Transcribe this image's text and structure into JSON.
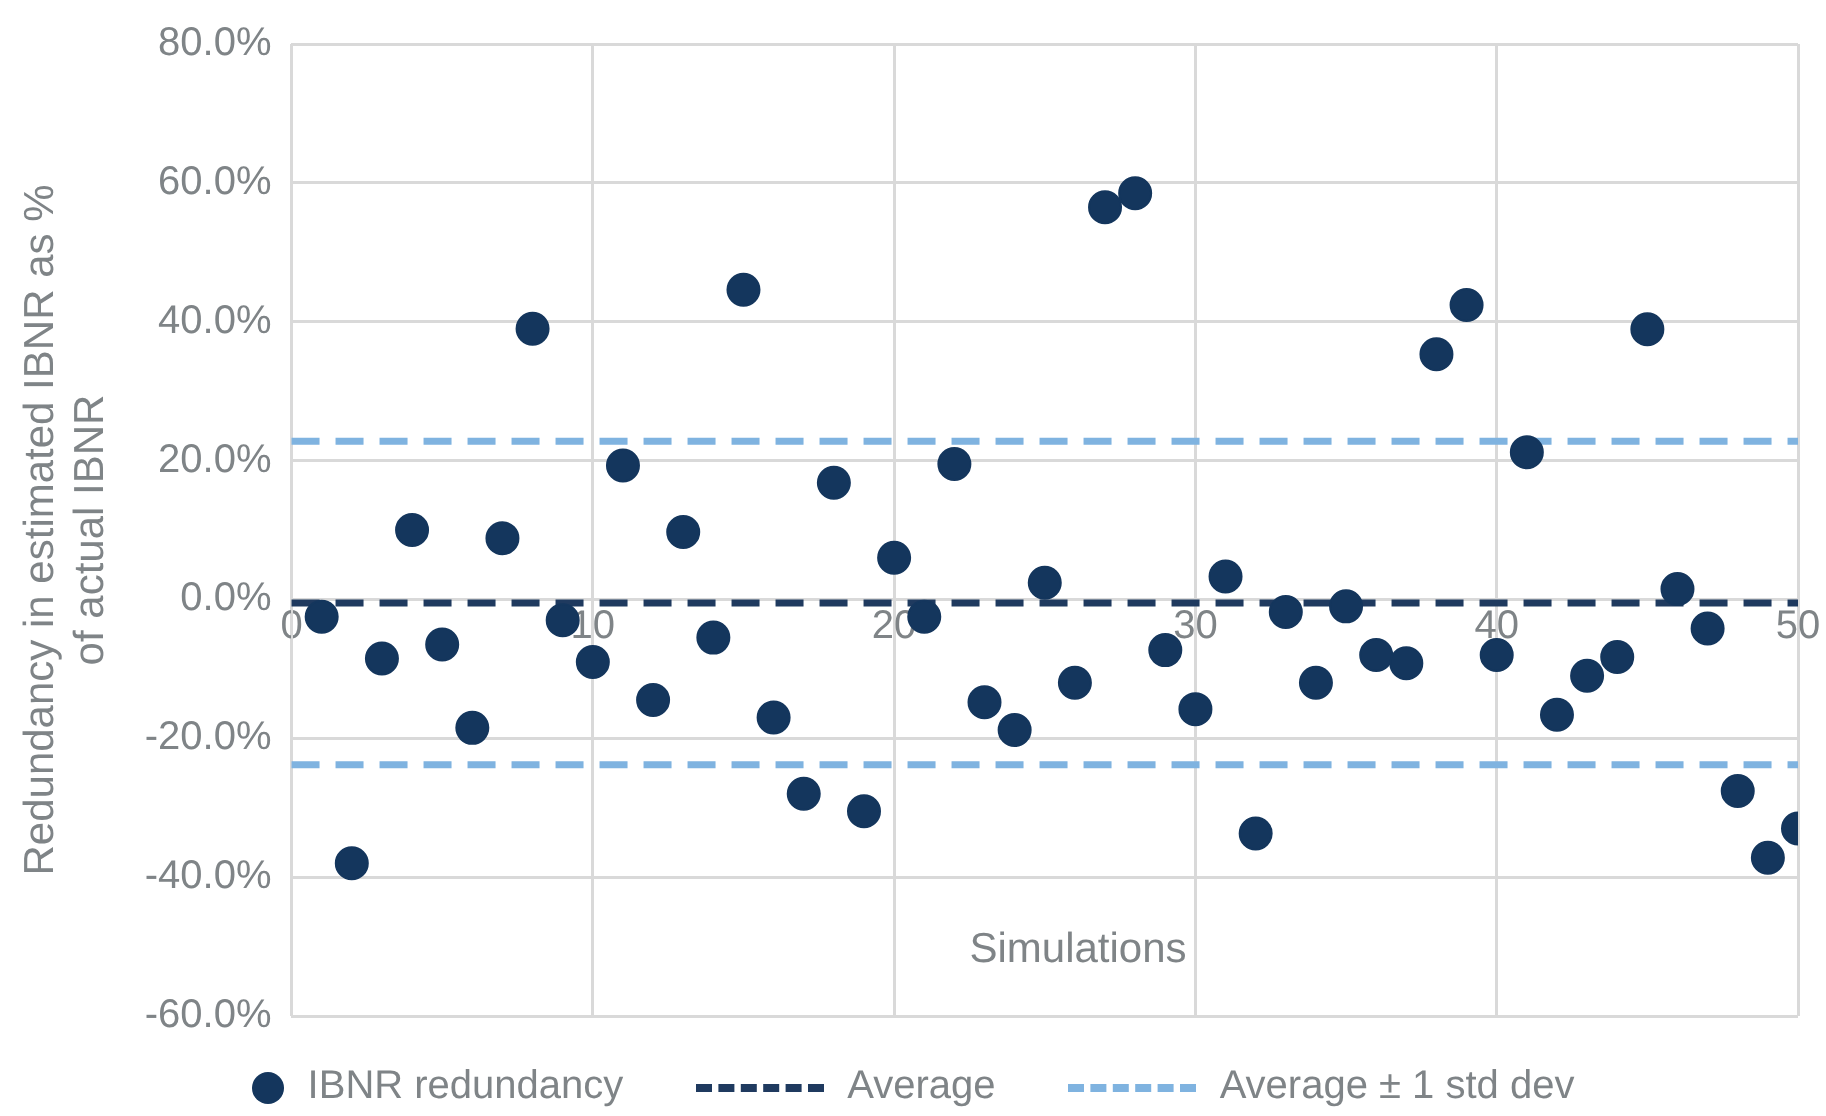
{
  "chart_data": {
    "type": "scatter",
    "xlabel": "Simulations",
    "ylabel": "Redundancy in estimated IBNR as % of actual IBNR",
    "x": [
      1,
      2,
      3,
      4,
      5,
      6,
      7,
      8,
      9,
      10,
      11,
      12,
      13,
      14,
      15,
      16,
      17,
      18,
      19,
      20,
      21,
      22,
      23,
      24,
      25,
      26,
      27,
      28,
      29,
      30,
      31,
      32,
      33,
      34,
      35,
      36,
      37,
      38,
      39,
      40,
      41,
      42,
      43,
      44,
      45,
      46,
      47,
      48,
      49,
      50
    ],
    "series": [
      {
        "name": "IBNR redundancy",
        "color": "#14365d",
        "values": [
          -2.5,
          -38,
          -8.5,
          10,
          -6.5,
          -18.5,
          8.8,
          39,
          -3,
          -9,
          19.3,
          -14.5,
          9.7,
          -5.5,
          44.6,
          -17,
          -28,
          16.8,
          -30.5,
          6,
          -2.5,
          19.5,
          -14.8,
          -18.8,
          2.4,
          -12,
          56.5,
          58.5,
          -7.3,
          -15.8,
          3.3,
          -33.7,
          -1.8,
          -12,
          -1,
          -8,
          -9.2,
          35.3,
          42.4,
          -8,
          21.2,
          -16.6,
          -11,
          -8.3,
          38.9,
          1.5,
          -4.2,
          -27.6,
          -37.2,
          -33
        ]
      }
    ],
    "ref_lines": [
      {
        "axis": "y",
        "value": -0.5,
        "label": "Average",
        "color": "#1f3a5f",
        "line_style": "dashed"
      },
      {
        "axis": "y",
        "value": 22.8,
        "label": "Average ± 1 std dev",
        "color": "#7fb3e0",
        "line_style": "dashed"
      },
      {
        "axis": "y",
        "value": -23.8,
        "label": null,
        "color": "#7fb3e0",
        "line_style": "dashed"
      }
    ],
    "xlim": [
      0,
      50
    ],
    "xticks": [
      0,
      10,
      20,
      30,
      40,
      50
    ],
    "ylim": [
      -60,
      80
    ],
    "yticks": [
      {
        "value": -60,
        "label": "-60.0%"
      },
      {
        "value": -40,
        "label": "-40.0%"
      },
      {
        "value": -20,
        "label": "-20.0%"
      },
      {
        "value": 0,
        "label": "0.0%"
      },
      {
        "value": 20,
        "label": "20.0%"
      },
      {
        "value": 40,
        "label": "40.0%"
      },
      {
        "value": 60,
        "label": "60.0%"
      },
      {
        "value": 80,
        "label": "80.0%"
      }
    ],
    "grid": true,
    "legend": "bottom",
    "marker": "circle"
  }
}
